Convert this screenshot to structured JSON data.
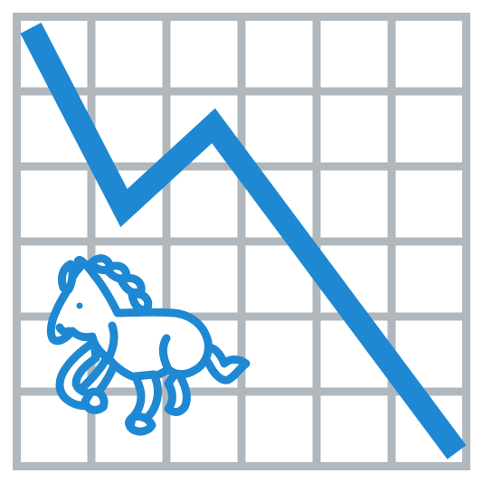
{
  "colors": {
    "background": "#ffffff",
    "grid": "#b0b8be",
    "line": "#1f88d2",
    "horse_outline": "#1f88d2",
    "horse_fill": "#ffffff"
  },
  "icons": {
    "grid": "grid-icon",
    "trend": "downtrend-line-icon",
    "horse": "galloping-horse-icon"
  }
}
